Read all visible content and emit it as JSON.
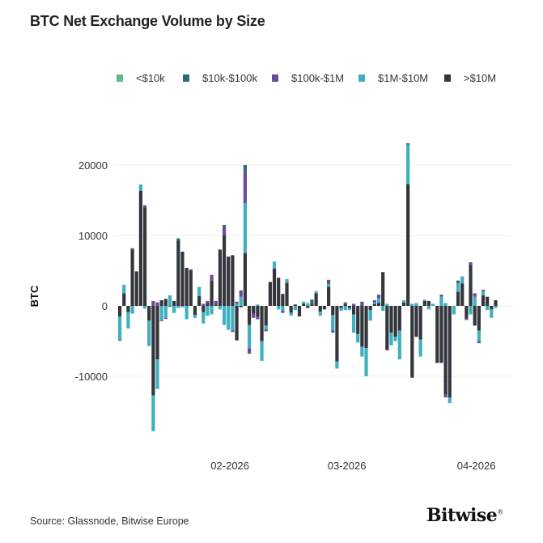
{
  "chart_data": {
    "type": "bar",
    "stacked": true,
    "title": "BTC Net Exchange Volume by Size",
    "xlabel": "",
    "ylabel": "BTC",
    "ylim": [
      -20000,
      24000
    ],
    "yticks": [
      20000,
      10000,
      0,
      -10000
    ],
    "ytick_labels": [
      "20000",
      "10000",
      "0",
      "-10000"
    ],
    "xtick_labels": [
      {
        "date": "2026-02-01",
        "label": "02-2026"
      },
      {
        "date": "2026-03-01",
        "label": "03-2026"
      },
      {
        "date": "2026-04-01",
        "label": "04-2026"
      }
    ],
    "grid": "horizontal",
    "legend_position": "top",
    "x": [
      "2026-01-06",
      "2026-01-07",
      "2026-01-08",
      "2026-01-09",
      "2026-01-10",
      "2026-01-11",
      "2026-01-12",
      "2026-01-13",
      "2026-01-14",
      "2026-01-15",
      "2026-01-16",
      "2026-01-17",
      "2026-01-18",
      "2026-01-19",
      "2026-01-20",
      "2026-01-21",
      "2026-01-22",
      "2026-01-23",
      "2026-01-24",
      "2026-01-25",
      "2026-01-26",
      "2026-01-27",
      "2026-01-28",
      "2026-01-29",
      "2026-01-30",
      "2026-01-31",
      "2026-02-01",
      "2026-02-02",
      "2026-02-03",
      "2026-02-04",
      "2026-02-05",
      "2026-02-06",
      "2026-02-07",
      "2026-02-08",
      "2026-02-09",
      "2026-02-10",
      "2026-02-11",
      "2026-02-12",
      "2026-02-13",
      "2026-02-14",
      "2026-02-15",
      "2026-02-16",
      "2026-02-17",
      "2026-02-18",
      "2026-02-19",
      "2026-02-20",
      "2026-02-21",
      "2026-02-22",
      "2026-02-23",
      "2026-02-24",
      "2026-02-25",
      "2026-02-26",
      "2026-02-27",
      "2026-02-28",
      "2026-03-01",
      "2026-03-02",
      "2026-03-03",
      "2026-03-04",
      "2026-03-05",
      "2026-03-06",
      "2026-03-07",
      "2026-03-08",
      "2026-03-09",
      "2026-03-10",
      "2026-03-11",
      "2026-03-12",
      "2026-03-13",
      "2026-03-14",
      "2026-03-15",
      "2026-03-16",
      "2026-03-17",
      "2026-03-18",
      "2026-03-19",
      "2026-03-20",
      "2026-03-21",
      "2026-03-22",
      "2026-03-23",
      "2026-03-24",
      "2026-03-25",
      "2026-03-26",
      "2026-03-27",
      "2026-03-28",
      "2026-03-29",
      "2026-03-30",
      "2026-03-31",
      "2026-04-01",
      "2026-04-02",
      "2026-04-03",
      "2026-04-04",
      "2026-04-05",
      "2026-04-06"
    ],
    "series": [
      {
        "name": "<$10k",
        "color": "#5dba8c",
        "values": [
          0,
          0,
          0,
          0,
          0,
          0,
          0,
          0,
          0,
          0,
          0,
          0,
          0,
          0,
          0,
          0,
          0,
          0,
          0,
          0,
          0,
          0,
          0,
          0,
          0,
          0,
          0,
          0,
          0,
          0,
          0,
          0,
          0,
          0,
          0,
          0,
          0,
          0,
          0,
          0,
          0,
          0,
          0,
          0,
          0,
          0,
          0,
          0,
          0,
          0,
          0,
          0,
          0,
          0,
          0,
          0,
          0,
          0,
          0,
          0,
          0,
          0,
          0,
          0,
          0,
          0,
          0,
          0,
          0,
          0,
          0,
          0,
          0,
          0,
          0,
          0,
          0,
          0,
          0,
          0,
          0,
          0,
          0,
          0,
          0,
          0,
          0,
          0,
          0,
          0,
          0
        ]
      },
      {
        "name": "$10k-$100k",
        "color": "#2b6c78",
        "values": [
          0,
          0,
          0,
          200,
          0,
          0,
          0,
          0,
          0,
          0,
          0,
          0,
          0,
          0,
          300,
          0,
          0,
          0,
          0,
          0,
          0,
          0,
          0,
          0,
          0,
          300,
          0,
          0,
          0,
          0,
          1000,
          -200,
          0,
          0,
          0,
          0,
          0,
          0,
          0,
          0,
          0,
          0,
          0,
          0,
          0,
          0,
          600,
          0,
          0,
          0,
          0,
          0,
          0,
          0,
          0,
          0,
          0,
          0,
          0,
          0,
          0,
          0,
          0,
          0,
          0,
          0,
          0,
          0,
          0,
          200,
          0,
          0,
          0,
          0,
          0,
          0,
          0,
          0,
          0,
          0,
          0,
          400,
          0,
          0,
          0,
          0,
          0,
          0,
          0,
          0,
          0
        ]
      },
      {
        "name": "$100k-$1M",
        "color": "#6d4a99",
        "values": [
          -150,
          0,
          0,
          0,
          0,
          0,
          300,
          0,
          700,
          500,
          -150,
          -150,
          0,
          0,
          0,
          0,
          0,
          200,
          0,
          0,
          300,
          300,
          800,
          500,
          0,
          1200,
          0,
          -200,
          300,
          900,
          4400,
          -600,
          -600,
          -400,
          0,
          -300,
          0,
          0,
          0,
          -300,
          0,
          0,
          0,
          0,
          0,
          0,
          0,
          0,
          0,
          0,
          600,
          -300,
          0,
          0,
          200,
          0,
          300,
          0,
          600,
          0,
          0,
          300,
          500,
          0,
          0,
          0,
          0,
          0,
          0,
          0,
          0,
          0,
          0,
          0,
          0,
          0,
          0,
          300,
          -400,
          0,
          0,
          0,
          0,
          -200,
          400,
          500,
          -300,
          200,
          0,
          0,
          0
        ]
      },
      {
        "name": "$1M-$10M",
        "color": "#3eb0bf",
        "values": [
          -3300,
          1200,
          -2300,
          -1100,
          0,
          900,
          -400,
          -3600,
          -5100,
          -4200,
          -2000,
          -1700,
          1500,
          -1000,
          -300,
          -200,
          -1900,
          0,
          -400,
          1300,
          -1600,
          -1400,
          -1200,
          0,
          -500,
          -2700,
          -3400,
          -3500,
          300,
          1300,
          7100,
          -3300,
          0,
          200,
          -2800,
          -500,
          0,
          1000,
          -500,
          -700,
          500,
          -400,
          -600,
          0,
          300,
          400,
          0,
          300,
          -600,
          0,
          400,
          -2200,
          -1000,
          -400,
          -600,
          -300,
          -2600,
          -1200,
          -1400,
          -4000,
          -1500,
          200,
          700,
          -700,
          300,
          -1800,
          -600,
          -4100,
          300,
          5600,
          300,
          400,
          -2400,
          200,
          -500,
          300,
          0,
          1300,
          400,
          -800,
          -1200,
          1200,
          1000,
          0,
          -1200,
          1300,
          -1500,
          600,
          -600,
          -1200,
          -300
        ]
      },
      {
        "name": ">$10M",
        "color": "#33373b",
        "values": [
          -1500,
          1800,
          -900,
          8000,
          4900,
          16350,
          14000,
          -2100,
          -12700,
          -7600,
          800,
          1000,
          -100,
          700,
          9300,
          7700,
          5400,
          5000,
          -1300,
          1400,
          -900,
          400,
          3600,
          200,
          8000,
          10000,
          7000,
          7200,
          -4900,
          -200,
          7500,
          -2700,
          -1100,
          -1500,
          -5000,
          -2800,
          3400,
          5300,
          4000,
          1700,
          3300,
          -1000,
          200,
          -1500,
          300,
          -300,
          300,
          1800,
          -800,
          -500,
          2700,
          -1300,
          -7900,
          -300,
          300,
          -300,
          -1200,
          -4000,
          -5800,
          -6000,
          -600,
          300,
          400,
          4800,
          -6300,
          -3800,
          -4400,
          -3500,
          500,
          17300,
          -10200,
          -4400,
          -4800,
          700,
          700,
          0,
          -8100,
          -8100,
          -12600,
          -13000,
          0,
          2000,
          3200,
          -1800,
          5800,
          -2800,
          -3500,
          1500,
          1300,
          -500,
          800
        ]
      }
    ]
  },
  "footer": {
    "source": "Source: Glassnode, Bitwise Europe",
    "logo": "Bitwise"
  }
}
